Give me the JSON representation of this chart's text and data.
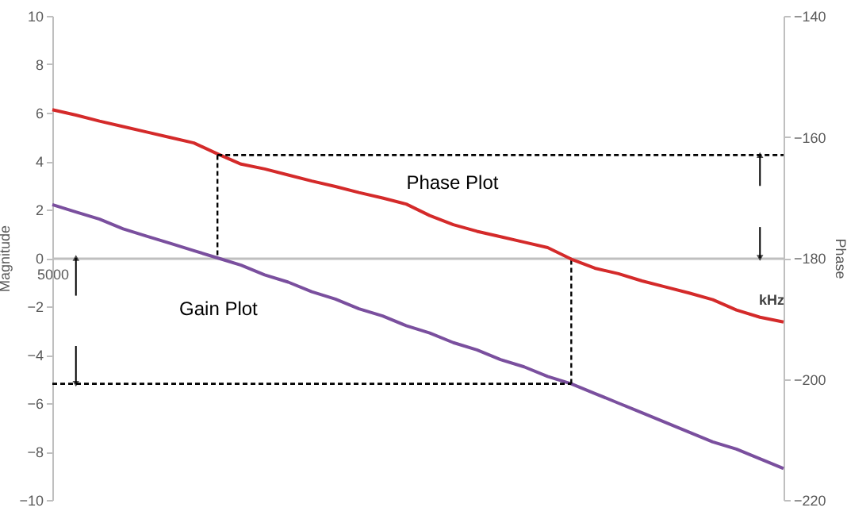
{
  "chart_data": {
    "type": "line",
    "xlabel": "kHz",
    "ylabel": "Magnitude",
    "y2label": "Phase",
    "annotations": [
      "Phase Plot",
      "Gain Plot"
    ],
    "categories": [
      "5000",
      null,
      null,
      null,
      null,
      null,
      null,
      null,
      null,
      null,
      null,
      null,
      null,
      null,
      null,
      null,
      null,
      null,
      null,
      null,
      null,
      null,
      null,
      null,
      null,
      null,
      null,
      null,
      null,
      null,
      null,
      null
    ],
    "series": [
      {
        "color": "#d42a2a",
        "axis": "y2",
        "line_style": "solid",
        "values": [
          -155.5,
          -156.4,
          -157.4,
          -158.3,
          -159.2,
          -160.1,
          -161.0,
          -162.8,
          -164.5,
          -165.3,
          -166.3,
          -167.3,
          -168.2,
          -169.2,
          -170.1,
          -171.1,
          -173.0,
          -174.5,
          -175.6,
          -176.5,
          -177.4,
          -178.3,
          -180.2,
          -181.7,
          -182.6,
          -183.8,
          -184.8,
          -185.8,
          -186.9,
          -188.6,
          -189.8,
          -190.6
        ]
      },
      {
        "color": "#7a4f9e",
        "axis": "y",
        "line_style": "solid",
        "values": [
          2.2,
          1.9,
          1.6,
          1.2,
          0.9,
          0.6,
          0.3,
          0,
          -0.3,
          -0.7,
          -1.0,
          -1.4,
          -1.7,
          -2.1,
          -2.4,
          -2.8,
          -3.1,
          -3.5,
          -3.8,
          -4.2,
          -4.5,
          -4.9,
          -5.2,
          -5.6,
          -6.0,
          -6.4,
          -6.8,
          -7.2,
          -7.6,
          -7.9,
          -8.3,
          -8.7
        ]
      },
      {
        "color": "#000000",
        "axis": "y2",
        "line_style": "dashed",
        "values": [
          null,
          null,
          null,
          null,
          null,
          null,
          null,
          -163,
          -163,
          -163,
          -163,
          -163,
          -163,
          -163,
          -163,
          -163,
          -163,
          -163,
          -163,
          -163,
          -163,
          -163,
          -163,
          -163,
          -163,
          -163,
          -163,
          -163,
          -163,
          -163,
          -163,
          -163
        ]
      },
      {
        "color": "#000000",
        "axis": "y",
        "line_style": "dashed",
        "values": [
          -5.2,
          -5.2,
          -5.2,
          -5.2,
          -5.2,
          -5.2,
          -5.2,
          -5.2,
          -5.2,
          -5.2,
          -5.2,
          -5.2,
          -5.2,
          -5.2,
          -5.2,
          -5.2,
          -5.2,
          -5.2,
          -5.2,
          -5.2,
          -5.2,
          -5.2,
          -5.2,
          null,
          null,
          null,
          null,
          null,
          null,
          null,
          null,
          null
        ]
      }
    ],
    "ylim": [
      -10,
      10
    ],
    "yticks": [
      -10,
      -8,
      -6,
      -4,
      -2,
      0,
      2,
      4,
      6,
      8,
      10
    ],
    "y2lim": [
      -220,
      -140
    ],
    "y2ticks": [
      -220,
      -200,
      -180,
      -160,
      -140
    ],
    "marker": "none"
  }
}
